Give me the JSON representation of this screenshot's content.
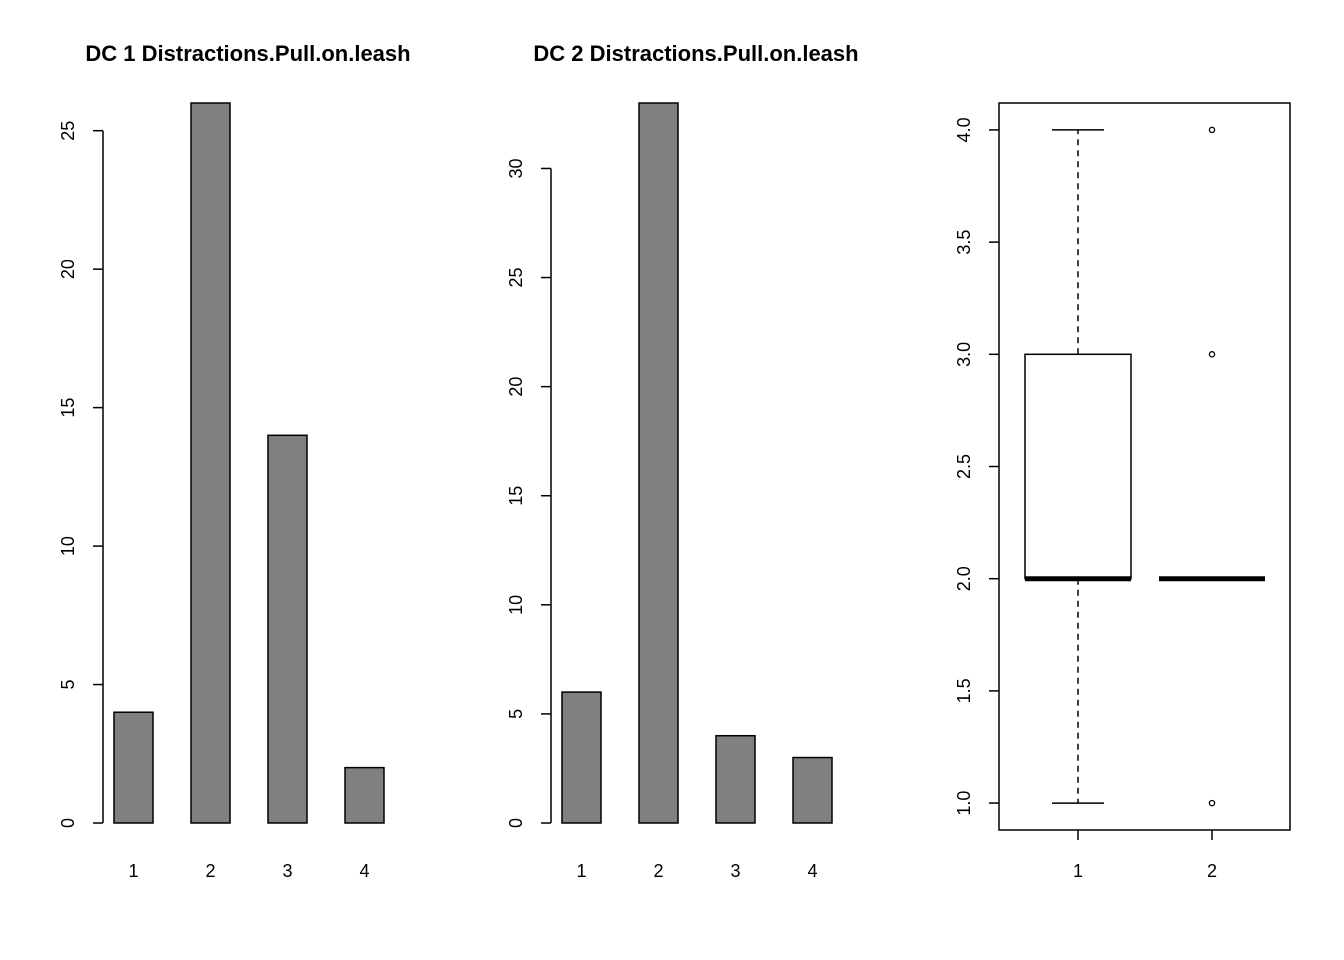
{
  "chart_data": [
    {
      "type": "bar",
      "title": "DC 1 Distractions.Pull.on.leash",
      "categories": [
        "1",
        "2",
        "3",
        "4"
      ],
      "values": [
        4,
        26,
        14,
        2
      ],
      "ylim": [
        0,
        26
      ],
      "yticks": [
        0,
        5,
        10,
        15,
        20,
        25
      ],
      "xlabel": "",
      "ylabel": "",
      "bar_color": "#808080"
    },
    {
      "type": "bar",
      "title": "DC 2 Distractions.Pull.on.leash",
      "categories": [
        "1",
        "2",
        "3",
        "4"
      ],
      "values": [
        6,
        33,
        4,
        3
      ],
      "ylim": [
        0,
        33
      ],
      "yticks": [
        0,
        5,
        10,
        15,
        20,
        25,
        30
      ],
      "xlabel": "",
      "ylabel": "",
      "bar_color": "#808080"
    },
    {
      "type": "boxplot",
      "title": "",
      "categories": [
        "1",
        "2"
      ],
      "boxes": [
        {
          "name": "1",
          "min": 1,
          "q1": 2,
          "median": 2,
          "q3": 3,
          "max": 4,
          "outliers": []
        },
        {
          "name": "2",
          "min": 2,
          "q1": 2,
          "median": 2,
          "q3": 2,
          "max": 2,
          "outliers": [
            1,
            3,
            4
          ]
        }
      ],
      "ylim": [
        0.88,
        4.12
      ],
      "yticks": [
        1.0,
        1.5,
        2.0,
        2.5,
        3.0,
        3.5,
        4.0
      ],
      "xlabel": "",
      "ylabel": ""
    }
  ]
}
